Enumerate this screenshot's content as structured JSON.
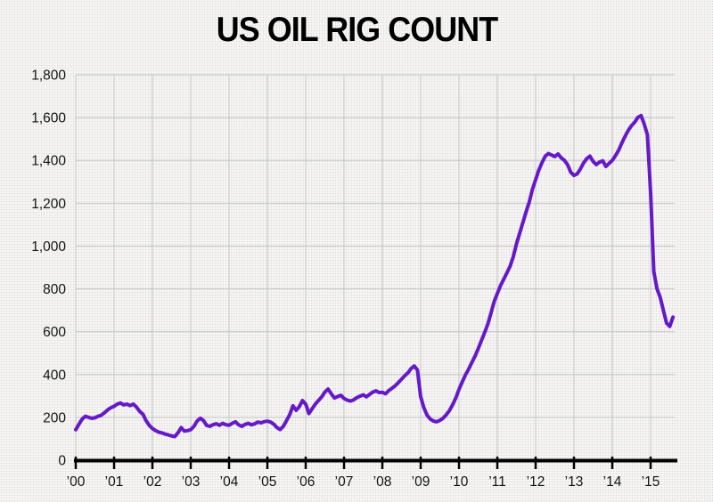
{
  "title": "US OIL RIG COUNT",
  "chart_data": {
    "type": "line",
    "title": "US OIL RIG COUNT",
    "xlabel": "",
    "ylabel": "",
    "legend": "none",
    "grid": true,
    "ylim": [
      0,
      1800
    ],
    "x_range_years": [
      2000,
      2015.6
    ],
    "y_ticks": [
      {
        "value": 0,
        "label": "0"
      },
      {
        "value": 200,
        "label": "200"
      },
      {
        "value": 400,
        "label": "400"
      },
      {
        "value": 600,
        "label": "600"
      },
      {
        "value": 800,
        "label": "800"
      },
      {
        "value": 1000,
        "label": "1,000"
      },
      {
        "value": 1200,
        "label": "1,200"
      },
      {
        "value": 1400,
        "label": "1,400"
      },
      {
        "value": 1600,
        "label": "1,600"
      },
      {
        "value": 1800,
        "label": "1,800"
      }
    ],
    "x_ticks": [
      {
        "value": 2000,
        "label": "’00"
      },
      {
        "value": 2001,
        "label": "’01"
      },
      {
        "value": 2002,
        "label": "’02"
      },
      {
        "value": 2003,
        "label": "’03"
      },
      {
        "value": 2004,
        "label": "’04"
      },
      {
        "value": 2005,
        "label": "’05"
      },
      {
        "value": 2006,
        "label": "’06"
      },
      {
        "value": 2007,
        "label": "’07"
      },
      {
        "value": 2008,
        "label": "’08"
      },
      {
        "value": 2009,
        "label": "’09"
      },
      {
        "value": 2010,
        "label": "’10"
      },
      {
        "value": 2011,
        "label": "’11"
      },
      {
        "value": 2012,
        "label": "’12"
      },
      {
        "value": 2013,
        "label": "’13"
      },
      {
        "value": 2014,
        "label": "’14"
      },
      {
        "value": 2015,
        "label": "’15"
      }
    ],
    "series": [
      {
        "name": "US oil rig count",
        "color": "#6519C9",
        "start_year": 2000,
        "interval_months": 1,
        "values": [
          142,
          168,
          192,
          205,
          200,
          196,
          198,
          205,
          210,
          222,
          235,
          245,
          252,
          262,
          267,
          258,
          262,
          255,
          262,
          248,
          228,
          215,
          185,
          163,
          148,
          138,
          131,
          127,
          122,
          118,
          113,
          110,
          128,
          152,
          136,
          138,
          142,
          158,
          183,
          196,
          185,
          162,
          158,
          166,
          170,
          163,
          172,
          166,
          163,
          172,
          179,
          165,
          158,
          167,
          172,
          165,
          170,
          178,
          174,
          180,
          182,
          178,
          168,
          152,
          143,
          158,
          185,
          213,
          254,
          233,
          250,
          278,
          262,
          218,
          240,
          262,
          278,
          295,
          318,
          332,
          310,
          290,
          297,
          303,
          288,
          280,
          276,
          282,
          292,
          299,
          305,
          296,
          307,
          318,
          324,
          316,
          317,
          310,
          325,
          336,
          347,
          362,
          378,
          394,
          408,
          428,
          440,
          421,
          296,
          245,
          210,
          192,
          183,
          179,
          186,
          196,
          212,
          232,
          258,
          290,
          330,
          365,
          398,
          425,
          455,
          485,
          520,
          558,
          595,
          635,
          685,
          740,
          778,
          815,
          845,
          875,
          905,
          950,
          1010,
          1060,
          1110,
          1160,
          1205,
          1265,
          1310,
          1355,
          1390,
          1420,
          1432,
          1425,
          1418,
          1430,
          1412,
          1400,
          1380,
          1345,
          1330,
          1337,
          1360,
          1388,
          1408,
          1420,
          1395,
          1380,
          1392,
          1398,
          1372,
          1386,
          1400,
          1422,
          1448,
          1482,
          1512,
          1540,
          1562,
          1578,
          1601,
          1609,
          1570,
          1520,
          1250,
          880,
          800,
          760,
          700,
          640,
          625,
          668
        ]
      }
    ],
    "colors": {
      "line": "#6519C9",
      "grid": "#c6c6c6",
      "axis": "#000000",
      "background": "#f3f2f0",
      "text": "#141414"
    }
  }
}
